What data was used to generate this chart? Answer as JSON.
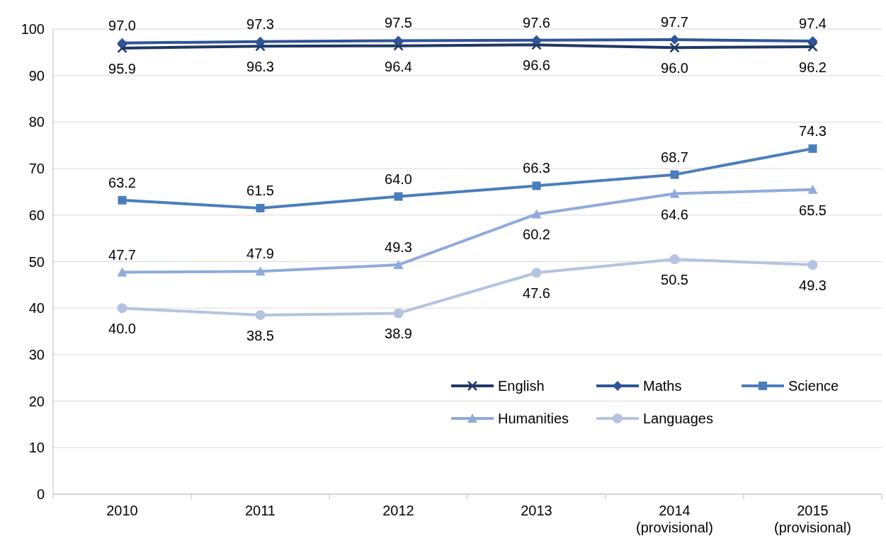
{
  "chart_data": {
    "type": "line",
    "categories": [
      "2010",
      "2011",
      "2012",
      "2013",
      "2014 (provisional)",
      "2015 (provisional)"
    ],
    "series": [
      {
        "name": "English",
        "color": "#1f3864",
        "marker": "cross",
        "values": [
          95.9,
          96.3,
          96.4,
          96.6,
          96.0,
          96.2
        ],
        "value_labels": [
          "95.9",
          "96.3",
          "96.4",
          "96.6",
          "96.0",
          "96.2"
        ]
      },
      {
        "name": "Maths",
        "color": "#2f5597",
        "marker": "diamond",
        "values": [
          97.0,
          97.3,
          97.5,
          97.6,
          97.7,
          97.4
        ],
        "value_labels": [
          "97.0",
          "97.3",
          "97.5",
          "97.6",
          "97.7",
          "97.4"
        ]
      },
      {
        "name": "Science",
        "color": "#4a7ebb",
        "marker": "square",
        "values": [
          63.2,
          61.5,
          64.0,
          66.3,
          68.7,
          74.3
        ],
        "value_labels": [
          "63.2",
          "61.5",
          "64.0",
          "66.3",
          "68.7",
          "74.3"
        ]
      },
      {
        "name": "Humanities",
        "color": "#8faadc",
        "marker": "triangle",
        "values": [
          47.7,
          47.9,
          49.3,
          60.2,
          64.6,
          65.5
        ],
        "value_labels": [
          "47.7",
          "47.9",
          "49.3",
          "60.2",
          "64.6",
          "65.5"
        ]
      },
      {
        "name": "Languages",
        "color": "#b4c3e0",
        "marker": "circle",
        "values": [
          40.0,
          38.5,
          38.9,
          47.6,
          50.5,
          49.3
        ],
        "value_labels": [
          "40.0",
          "38.5",
          "38.9",
          "47.6",
          "50.5",
          "49.3"
        ]
      }
    ],
    "ylim": [
      0,
      100
    ],
    "yticks": [
      0,
      10,
      20,
      30,
      40,
      50,
      60,
      70,
      80,
      90,
      100
    ],
    "grid": "y",
    "legend": "bottom right"
  }
}
